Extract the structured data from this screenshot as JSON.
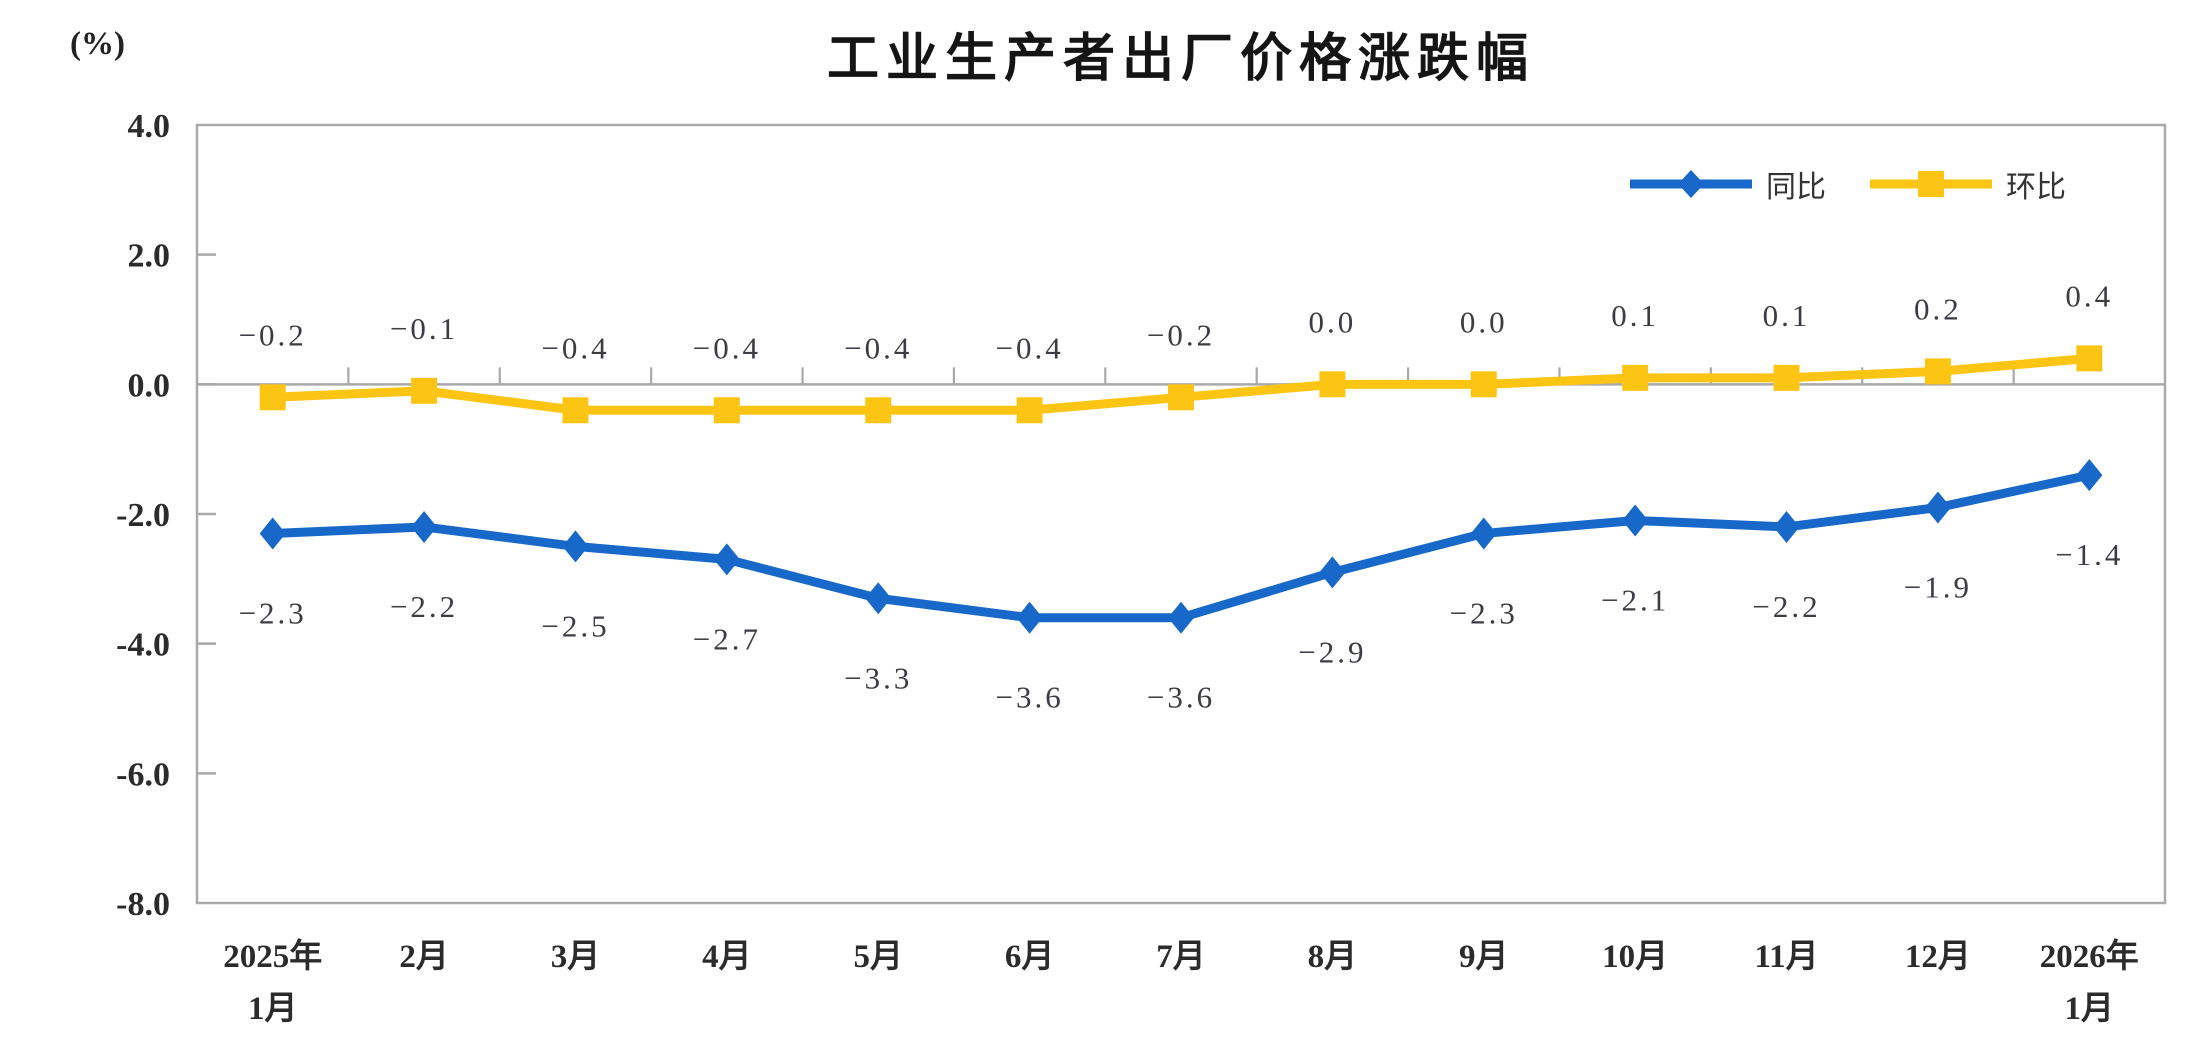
{
  "chart_data": {
    "type": "line",
    "title": "工业生产者出厂价格涨跌幅",
    "ylabel": "(%)",
    "xlabel": "",
    "categories": [
      "2025年\n1月",
      "2月",
      "3月",
      "4月",
      "5月",
      "6月",
      "7月",
      "8月",
      "9月",
      "10月",
      "11月",
      "12月",
      "2026年\n1月"
    ],
    "series": [
      {
        "name": "同比",
        "marker": "diamond",
        "color": "#1868C9",
        "label_position": "below",
        "values": [
          -2.3,
          -2.2,
          -2.5,
          -2.7,
          -3.3,
          -3.6,
          -3.6,
          -2.9,
          -2.3,
          -2.1,
          -2.2,
          -1.9,
          -1.4
        ],
        "labels": [
          "−2.3",
          "−2.2",
          "−2.5",
          "−2.7",
          "−3.3",
          "−3.6",
          "−3.6",
          "−2.9",
          "−2.3",
          "−2.1",
          "−2.2",
          "−1.9",
          "−1.4"
        ]
      },
      {
        "name": "环比",
        "marker": "square",
        "color": "#FDC513",
        "label_position": "above",
        "values": [
          -0.2,
          -0.1,
          -0.4,
          -0.4,
          -0.4,
          -0.4,
          -0.2,
          0.0,
          0.0,
          0.1,
          0.1,
          0.2,
          0.4
        ],
        "labels": [
          "−0.2",
          "−0.1",
          "−0.4",
          "−0.4",
          "−0.4",
          "−0.4",
          "−0.2",
          "0.0",
          "0.0",
          "0.1",
          "0.1",
          "0.2",
          "0.4"
        ]
      }
    ],
    "ylim": [
      -8,
      4
    ],
    "ytick_step": 2,
    "yticks": [
      4,
      2,
      0,
      -2,
      -4,
      -6,
      -8
    ],
    "ytick_labels": [
      "4.0",
      "2.0",
      "0.0",
      "-2.0",
      "-4.0",
      "-6.0",
      "-8.0"
    ],
    "grid": false,
    "zero_axis_line": true,
    "legend_position": "top-right",
    "axis_color": "#A9A9A9",
    "tick_label_color": "#2B2B2B",
    "data_label_color": "#3C3C44"
  }
}
